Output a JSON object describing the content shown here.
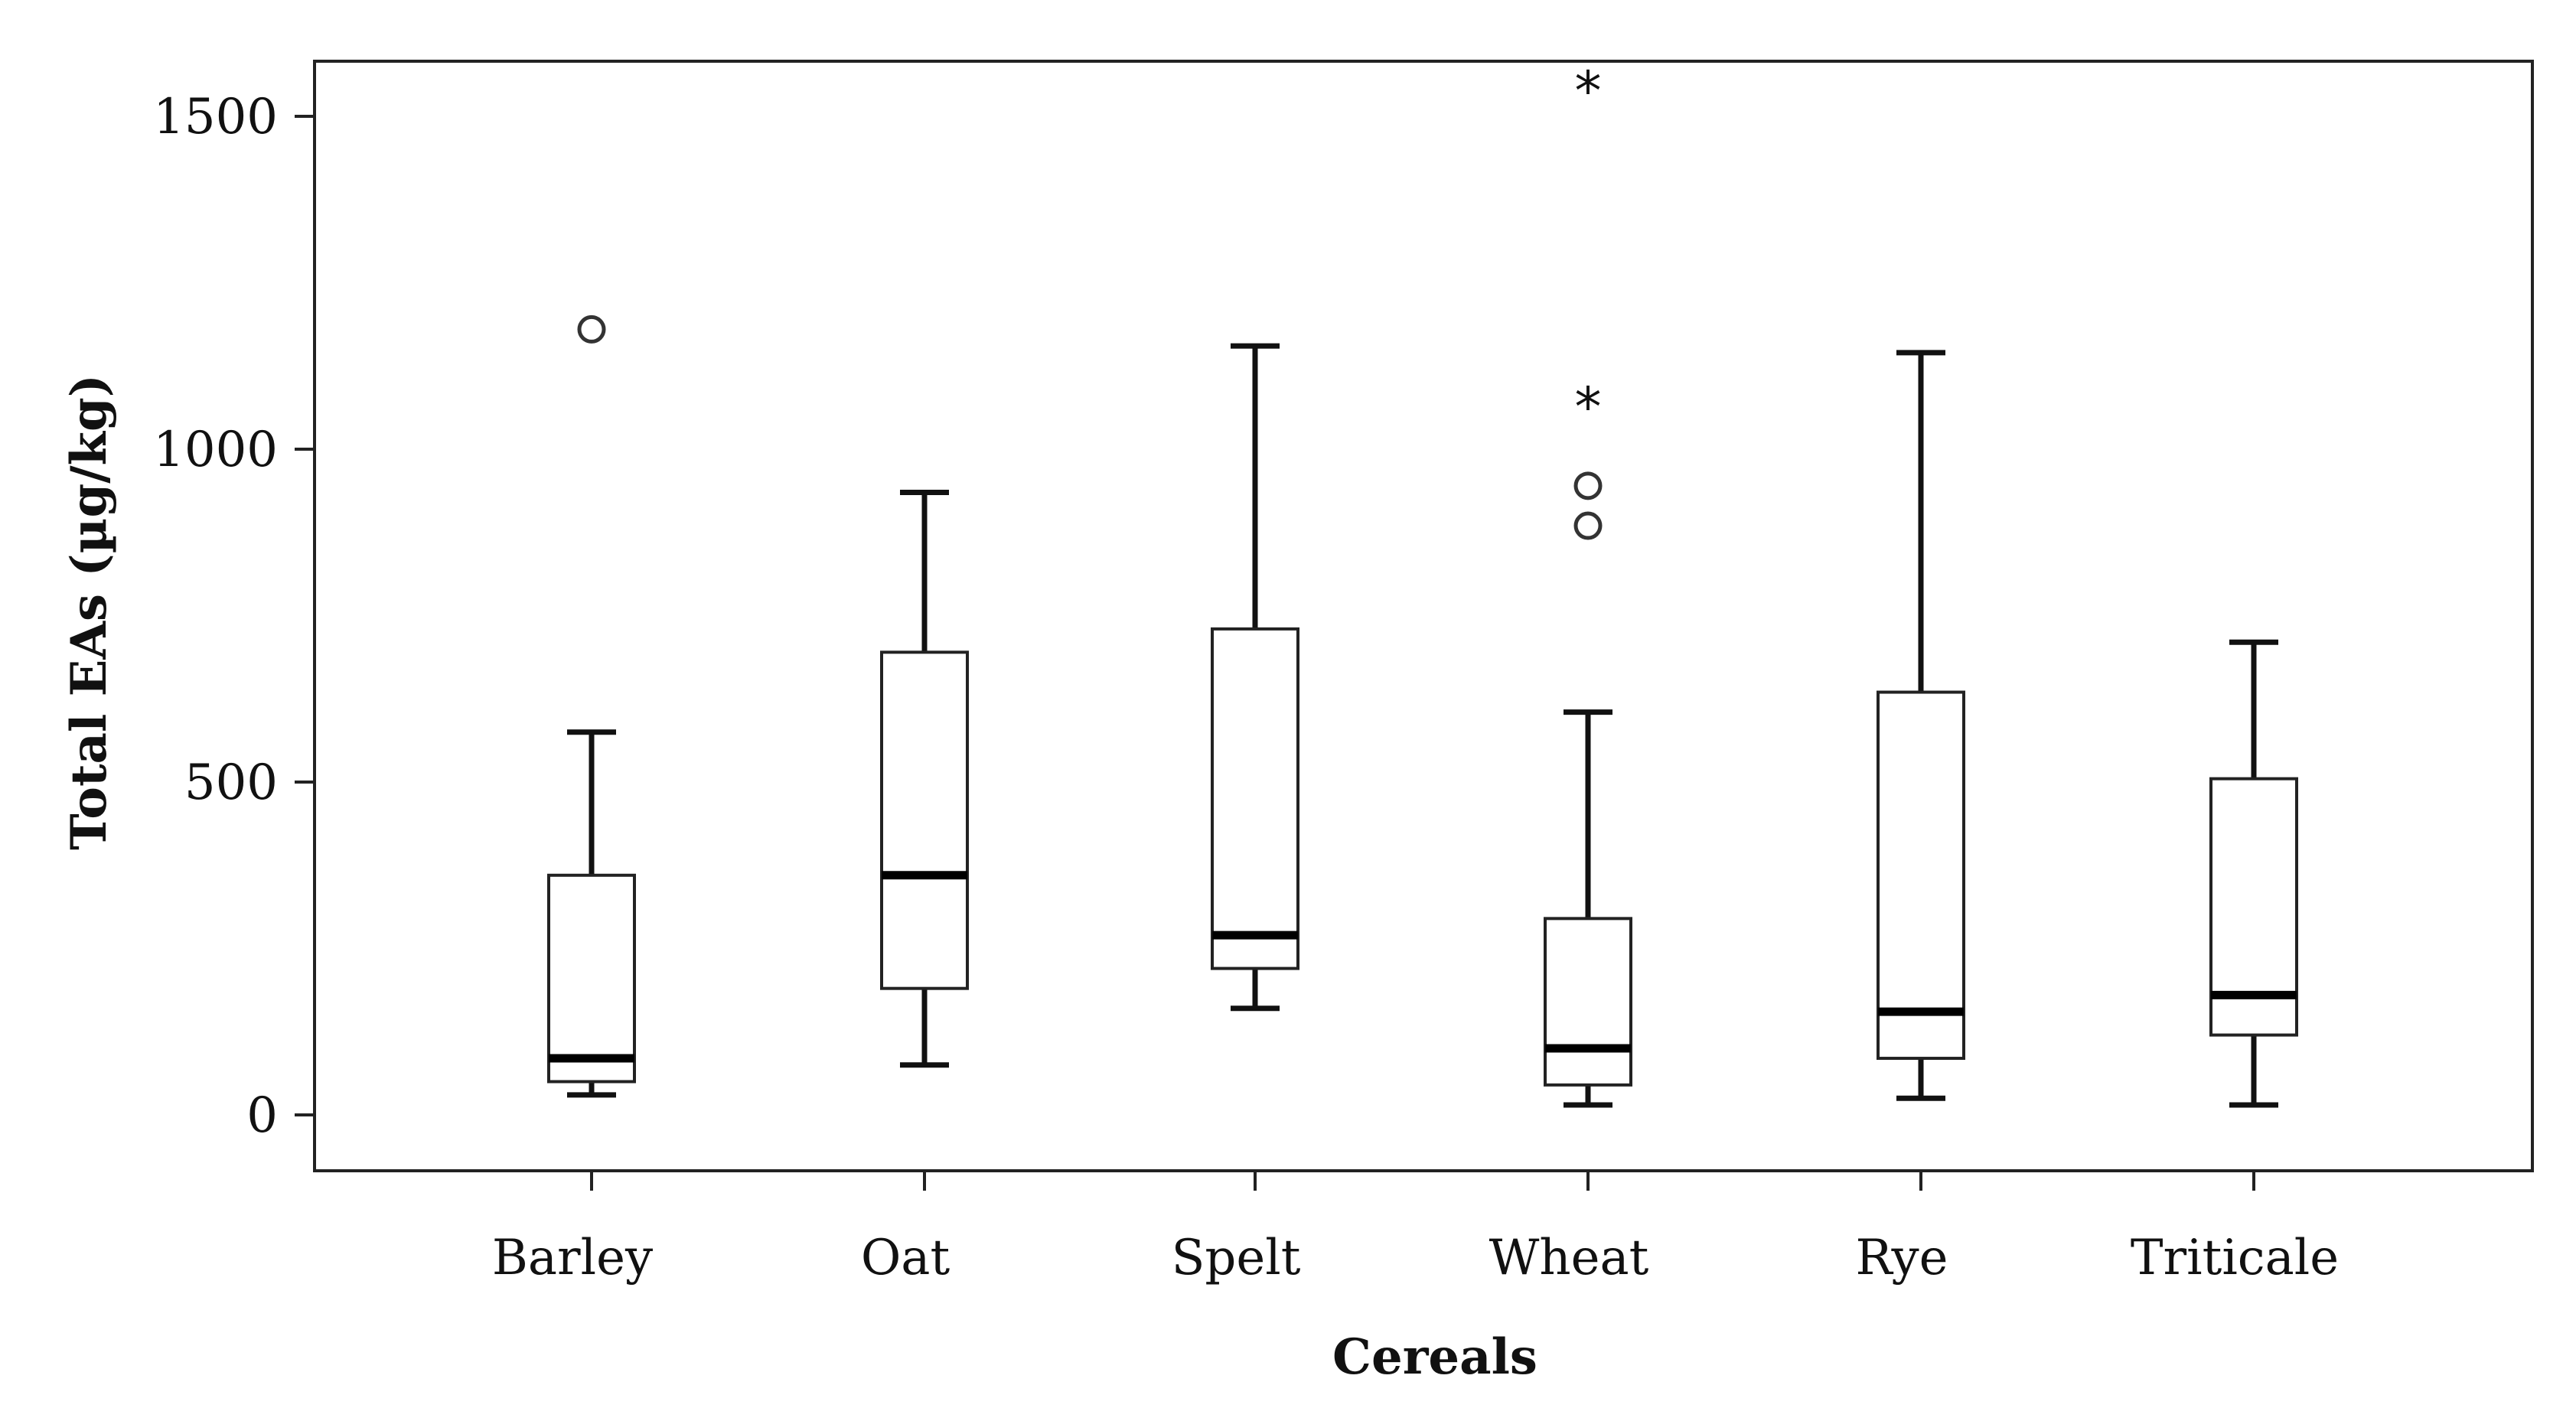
{
  "chart_data": {
    "type": "boxplot",
    "title": "",
    "xlabel": "Cereals",
    "ylabel": "Total EAs (µg/kg)",
    "ylim": [
      -80,
      1580
    ],
    "yticks": [
      0,
      500,
      1000,
      1500
    ],
    "ytick_labels": [
      "0",
      "500",
      "1000",
      "1500"
    ],
    "categories": [
      "Barley",
      "Oat",
      "Spelt",
      "Wheat",
      "Rye",
      "Triticale"
    ],
    "boxes": [
      {
        "name": "Barley",
        "whisker_low": 30,
        "q1": 50,
        "median": 85,
        "q3": 360,
        "whisker_high": 575,
        "outliers": [
          {
            "value": 1180,
            "marker": "circle"
          }
        ]
      },
      {
        "name": "Oat",
        "whisker_low": 75,
        "q1": 190,
        "median": 360,
        "q3": 695,
        "whisker_high": 935,
        "outliers": []
      },
      {
        "name": "Spelt",
        "whisker_low": 160,
        "q1": 220,
        "median": 270,
        "q3": 730,
        "whisker_high": 1155,
        "outliers": []
      },
      {
        "name": "Wheat",
        "whisker_low": 15,
        "q1": 45,
        "median": 100,
        "q3": 295,
        "whisker_high": 605,
        "outliers": [
          {
            "value": 885,
            "marker": "circle"
          },
          {
            "value": 945,
            "marker": "circle"
          },
          {
            "value": 1070,
            "marker": "star"
          },
          {
            "value": 1545,
            "marker": "star"
          }
        ]
      },
      {
        "name": "Rye",
        "whisker_low": 25,
        "q1": 85,
        "median": 155,
        "q3": 635,
        "whisker_high": 1145,
        "outliers": []
      },
      {
        "name": "Triticale",
        "whisker_low": 15,
        "q1": 120,
        "median": 180,
        "q3": 505,
        "whisker_high": 710,
        "outliers": []
      }
    ]
  }
}
